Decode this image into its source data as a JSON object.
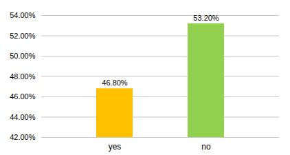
{
  "chart_data": {
    "type": "bar",
    "categories": [
      "yes",
      "no"
    ],
    "values": [
      46.8,
      53.2
    ],
    "value_labels": [
      "46.80%",
      "53.20%"
    ],
    "data_labels": true,
    "colors": [
      "#FFC000",
      "#92D050"
    ],
    "ylim": [
      42.0,
      54.0
    ],
    "yticks": [
      {
        "value": 42.0,
        "label": "42.00%"
      },
      {
        "value": 44.0,
        "label": "44.00%"
      },
      {
        "value": 46.0,
        "label": "46.00%"
      },
      {
        "value": 48.0,
        "label": "48.00%"
      },
      {
        "value": 50.0,
        "label": "50.00%"
      },
      {
        "value": 52.0,
        "label": "52.00%"
      },
      {
        "value": 54.0,
        "label": "54.00%"
      }
    ],
    "grid": true
  }
}
